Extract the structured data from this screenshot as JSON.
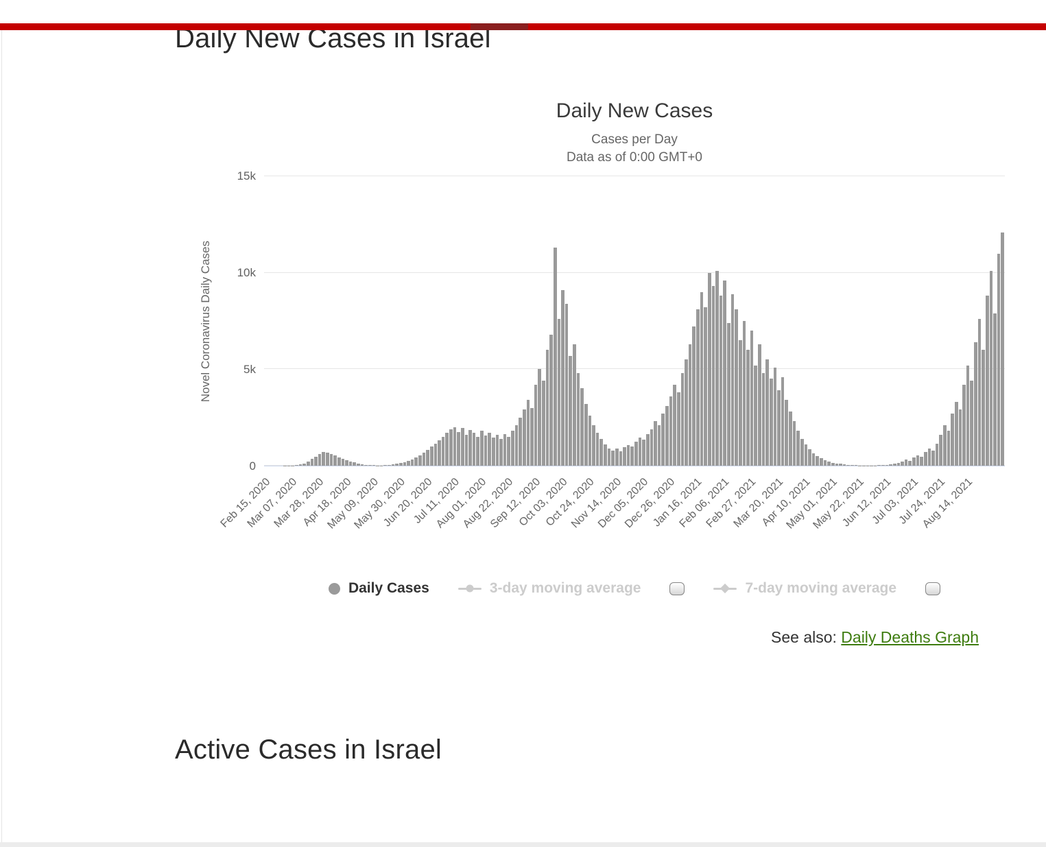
{
  "page": {
    "heading": "Daily New Cases in Israel",
    "section2_heading": "Active Cases in Israel",
    "see_also_label": "See also:",
    "see_also_link": "Daily Deaths Graph"
  },
  "colors": {
    "top_banner": "#c40000",
    "top_banner_dark": "#8a1f1f",
    "bar": "#9a9a9a",
    "link_green": "#3e7c0f"
  },
  "chart_data": {
    "type": "bar",
    "title": "Daily New Cases",
    "subtitle1": "Cases per Day",
    "subtitle2": "Data as of 0:00 GMT+0",
    "ylabel": "Novel Coronavirus Daily Cases",
    "ylim": [
      0,
      15000
    ],
    "ytick_values": [
      0,
      5000,
      10000,
      15000
    ],
    "ytick_labels": [
      "0",
      "5k",
      "10k",
      "15k"
    ],
    "x_start": "Feb 15, 2020",
    "x_step_days": 3,
    "x_tick_labels": [
      "Feb 15, 2020",
      "Mar 07, 2020",
      "Mar 28, 2020",
      "Apr 18, 2020",
      "May 09, 2020",
      "May 30, 2020",
      "Jun 20, 2020",
      "Jul 11, 2020",
      "Aug 01, 2020",
      "Aug 22, 2020",
      "Sep 12, 2020",
      "Oct 03, 2020",
      "Oct 24, 2020",
      "Nov 14, 2020",
      "Dec 05, 2020",
      "Dec 26, 2020",
      "Jan 16, 2021",
      "Feb 06, 2021",
      "Feb 27, 2021",
      "Mar 20, 2021",
      "Apr 10, 2021",
      "May 01, 2021",
      "May 22, 2021",
      "Jun 12, 2021",
      "Jul 03, 2021",
      "Jul 24, 2021",
      "Aug 14, 2021"
    ],
    "series_name": "Daily Cases",
    "values": [
      0,
      0,
      0,
      1,
      2,
      3,
      6,
      10,
      25,
      60,
      120,
      220,
      350,
      480,
      620,
      700,
      660,
      590,
      520,
      430,
      360,
      290,
      230,
      170,
      120,
      80,
      50,
      30,
      20,
      15,
      12,
      20,
      35,
      60,
      100,
      140,
      190,
      250,
      330,
      430,
      550,
      680,
      820,
      980,
      1150,
      1300,
      1500,
      1700,
      1900,
      2000,
      1750,
      1950,
      1600,
      1850,
      1700,
      1500,
      1800,
      1550,
      1700,
      1450,
      1600,
      1400,
      1650,
      1500,
      1800,
      2100,
      2500,
      2900,
      3400,
      3000,
      4200,
      5000,
      4400,
      6000,
      6800,
      11300,
      7600,
      9100,
      8400,
      5700,
      6300,
      4800,
      4000,
      3200,
      2600,
      2100,
      1700,
      1400,
      1100,
      900,
      780,
      880,
      760,
      950,
      1050,
      980,
      1250,
      1450,
      1350,
      1650,
      1900,
      2300,
      2100,
      2700,
      3100,
      3600,
      4200,
      3800,
      4800,
      5500,
      6300,
      7200,
      8100,
      9000,
      8200,
      10000,
      9300,
      10100,
      8800,
      9600,
      7400,
      8900,
      8100,
      6500,
      7500,
      6000,
      7000,
      5200,
      6300,
      4800,
      5500,
      4500,
      5100,
      3900,
      4600,
      3400,
      2800,
      2300,
      1800,
      1400,
      1100,
      850,
      650,
      500,
      380,
      290,
      220,
      160,
      120,
      90,
      65,
      45,
      30,
      22,
      15,
      12,
      10,
      12,
      15,
      20,
      30,
      45,
      70,
      110,
      160,
      230,
      310,
      260,
      420,
      550,
      480,
      700,
      900,
      780,
      1150,
      1600,
      2100,
      1800,
      2700,
      3300,
      2900,
      4200,
      5200,
      4400,
      6400,
      7600,
      6000,
      8800,
      10100,
      7900,
      11000,
      12100
    ],
    "grid": true,
    "legend_position": "bottom",
    "legend": [
      {
        "label": "Daily Cases",
        "marker": "circle",
        "enabled": true,
        "has_checkbox": false
      },
      {
        "label": "3-day moving average",
        "marker": "line-circle",
        "enabled": false,
        "has_checkbox": true,
        "checked": false
      },
      {
        "label": "7-day moving average",
        "marker": "line-diamond",
        "enabled": false,
        "has_checkbox": true,
        "checked": false
      }
    ]
  }
}
